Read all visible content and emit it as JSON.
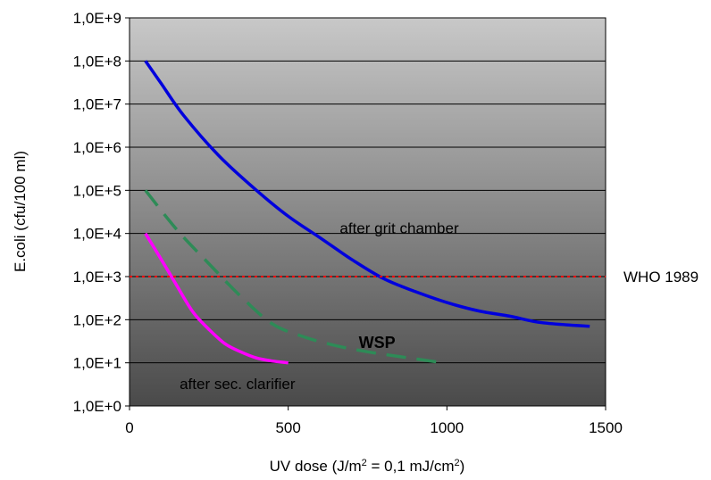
{
  "chart_data": {
    "type": "line",
    "title": "",
    "xlabel_parts": {
      "a": "UV dose (J/m",
      "sup1": "2",
      "b": " = 0,1 mJ/cm",
      "sup2": "2",
      "c": ")"
    },
    "ylabel": "E.coli (cfu/100 ml)",
    "x_range": [
      0,
      1500
    ],
    "y_scale": "log",
    "y_range": [
      1,
      1000000000
    ],
    "x_ticks": [
      {
        "value": 0,
        "label": "0"
      },
      {
        "value": 500,
        "label": "500"
      },
      {
        "value": 1000,
        "label": "1000"
      },
      {
        "value": 1500,
        "label": "1500"
      }
    ],
    "y_ticks": [
      {
        "value": 1,
        "label": "1,0E+0"
      },
      {
        "value": 10,
        "label": "1,0E+1"
      },
      {
        "value": 100,
        "label": "1,0E+2"
      },
      {
        "value": 1000,
        "label": "1,0E+3"
      },
      {
        "value": 10000,
        "label": "1,0E+4"
      },
      {
        "value": 100000,
        "label": "1,0E+5"
      },
      {
        "value": 1000000,
        "label": "1,0E+6"
      },
      {
        "value": 10000000,
        "label": "1,0E+7"
      },
      {
        "value": 100000000,
        "label": "1,0E+8"
      },
      {
        "value": 1000000000,
        "label": "1,0E+9"
      }
    ],
    "grid": "horizontal",
    "background": "gradient light gray (top) to dark gray (bottom)",
    "series": [
      {
        "name": "after grit chamber",
        "color": "#0000dd",
        "style": "solid",
        "points": [
          [
            50,
            100000000
          ],
          [
            100,
            30000000
          ],
          [
            170,
            5500000
          ],
          [
            280,
            650000
          ],
          [
            400,
            100000
          ],
          [
            500,
            25000
          ],
          [
            600,
            8000
          ],
          [
            700,
            2500
          ],
          [
            800,
            900
          ],
          [
            900,
            450
          ],
          [
            1000,
            250
          ],
          [
            1100,
            160
          ],
          [
            1200,
            120
          ],
          [
            1300,
            85
          ],
          [
            1450,
            70
          ]
        ]
      },
      {
        "name": "WSP",
        "color": "#2e8b57",
        "style": "dashed",
        "points": [
          [
            50,
            100000
          ],
          [
            150,
            12000
          ],
          [
            250,
            2000
          ],
          [
            350,
            350
          ],
          [
            450,
            80
          ],
          [
            550,
            40
          ],
          [
            650,
            25
          ],
          [
            750,
            18
          ],
          [
            850,
            14
          ],
          [
            990,
            10
          ]
        ]
      },
      {
        "name": "after sec. clarifier",
        "color": "#ff00ff",
        "style": "solid",
        "points": [
          [
            50,
            10000
          ],
          [
            100,
            2500
          ],
          [
            150,
            600
          ],
          [
            200,
            150
          ],
          [
            250,
            60
          ],
          [
            300,
            28
          ],
          [
            350,
            18
          ],
          [
            400,
            13
          ],
          [
            450,
            11
          ],
          [
            500,
            10
          ]
        ]
      }
    ],
    "reference_line": {
      "name": "WHO 1989",
      "value": 1000,
      "color": "#ff0000",
      "style": "dotted"
    },
    "annotations": [
      {
        "text": "after grit chamber",
        "x": 850,
        "y": 10000,
        "bold": false
      },
      {
        "text": "WSP",
        "x": 780,
        "y": 22,
        "bold": true
      },
      {
        "text": "after sec. clarifier",
        "x": 340,
        "y": 2.5,
        "bold": false
      }
    ]
  }
}
